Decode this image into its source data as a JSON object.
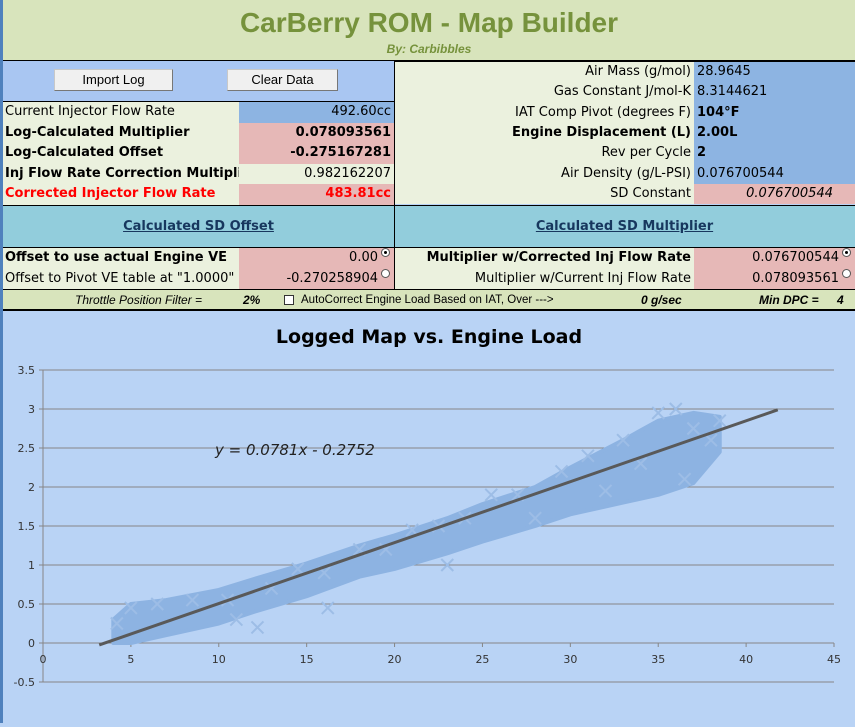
{
  "header": {
    "title": "CarBerry ROM - Map Builder",
    "byline": "By: Carbibbles"
  },
  "buttons": {
    "import_log": "Import Log",
    "clear_data": "Clear Data"
  },
  "left_rows": [
    {
      "label": "Current Injector Flow Rate",
      "value": "492.60cc"
    },
    {
      "label": "Log-Calculated Multiplier",
      "value": "0.078093561"
    },
    {
      "label": "Log-Calculated Offset",
      "value": "-0.275167281"
    },
    {
      "label": "Inj Flow Rate Correction Multiplier",
      "value": "0.982162207"
    },
    {
      "label": "Corrected Injector Flow Rate",
      "value": "483.81cc"
    }
  ],
  "right_rows": [
    {
      "label": "Air Mass (g/mol)",
      "value": "28.9645"
    },
    {
      "label": "Gas Constant J/mol-K",
      "value": "8.3144621"
    },
    {
      "label": "IAT Comp Pivot (degrees F)",
      "value": "104°F"
    },
    {
      "label": "Engine Displacement (L)",
      "value": "2.00L"
    },
    {
      "label": "Rev per Cycle",
      "value": "2"
    },
    {
      "label": "Air Density (g/L-PSI)",
      "value": "0.076700544"
    },
    {
      "label": "SD Constant",
      "value": "0.076700544"
    }
  ],
  "sd_offset": {
    "title": "Calculated SD Offset",
    "options": [
      {
        "label": "Offset to use actual Engine VE",
        "value": "0.00",
        "selected": true
      },
      {
        "label": "Offset to Pivot VE table at \"1.0000\"",
        "value": "-0.270258904",
        "selected": false
      }
    ]
  },
  "sd_multiplier": {
    "title": "Calculated SD Multiplier",
    "options": [
      {
        "label": "Multiplier w/Corrected Inj Flow Rate",
        "value": "0.076700544",
        "selected": true
      },
      {
        "label": "Multiplier w/Current Inj Flow Rate",
        "value": "0.078093561",
        "selected": false
      }
    ]
  },
  "filter_bar": {
    "throttle_label": "Throttle Position Filter  =",
    "throttle_value": "2%",
    "autocorrect_label": "AutoCorrect  Engine Load Based on IAT, Over  --->",
    "autocorrect_checked": false,
    "gsec": "0 g/sec",
    "min_dpc_label": "Min DPC =",
    "min_dpc_value": "4"
  },
  "colors": {
    "header_green": "#76923c",
    "red_text": "#ff0000",
    "input_blue": "#8db4e2",
    "calc_pink": "#e6b8b7",
    "marker": "#8db3e2",
    "trendline": "#595959"
  },
  "chart_data": {
    "type": "scatter",
    "title": "Logged Map vs. Engine Load",
    "xlim": [
      0,
      45
    ],
    "ylim": [
      -0.5,
      3.5
    ],
    "xticks": [
      "0",
      "5",
      "10",
      "15",
      "20",
      "25",
      "30",
      "35",
      "40",
      "45"
    ],
    "yticks": [
      "3.5",
      "3",
      "2.5",
      "2",
      "1.5",
      "1",
      "0.5",
      "0",
      "-0.5"
    ],
    "grid": "horizontal",
    "marker": "x",
    "trendline": {
      "slope": 0.0781,
      "intercept": -0.2752,
      "x_range": [
        3.2,
        41.8
      ],
      "equation": "y = 0.0781x - 0.2752"
    },
    "envelope": [
      [
        4,
        0,
        0.3
      ],
      [
        5,
        0,
        0.5
      ],
      [
        7,
        0.1,
        0.55
      ],
      [
        10,
        0.25,
        0.68
      ],
      [
        12,
        0.4,
        0.82
      ],
      [
        15,
        0.6,
        1.02
      ],
      [
        18,
        0.85,
        1.25
      ],
      [
        20,
        0.95,
        1.38
      ],
      [
        23,
        1.15,
        1.6
      ],
      [
        25,
        1.3,
        1.78
      ],
      [
        28,
        1.5,
        2.0
      ],
      [
        30,
        1.65,
        2.25
      ],
      [
        33,
        1.8,
        2.6
      ],
      [
        35,
        1.9,
        2.85
      ],
      [
        37,
        2.05,
        2.95
      ],
      [
        38.5,
        2.45,
        2.9
      ]
    ],
    "points": [
      [
        4.2,
        0.25
      ],
      [
        5,
        0.45
      ],
      [
        6.5,
        0.5
      ],
      [
        8.5,
        0.55
      ],
      [
        10.5,
        0.55
      ],
      [
        11,
        0.3
      ],
      [
        13,
        0.7
      ],
      [
        14.5,
        0.95
      ],
      [
        16,
        0.9
      ],
      [
        18,
        1.2
      ],
      [
        19.5,
        1.2
      ],
      [
        21,
        1.45
      ],
      [
        22.5,
        1.5
      ],
      [
        24,
        1.6
      ],
      [
        25.5,
        1.9
      ],
      [
        27,
        1.9
      ],
      [
        28,
        1.6
      ],
      [
        29.5,
        2.2
      ],
      [
        31,
        2.4
      ],
      [
        32,
        1.95
      ],
      [
        33,
        2.6
      ],
      [
        34,
        2.3
      ],
      [
        35,
        2.95
      ],
      [
        36,
        3.0
      ],
      [
        36.5,
        2.1
      ],
      [
        37,
        2.75
      ],
      [
        38,
        2.6
      ],
      [
        38.5,
        2.85
      ],
      [
        12.2,
        0.2
      ],
      [
        16.2,
        0.45
      ],
      [
        23,
        1.0
      ]
    ]
  }
}
